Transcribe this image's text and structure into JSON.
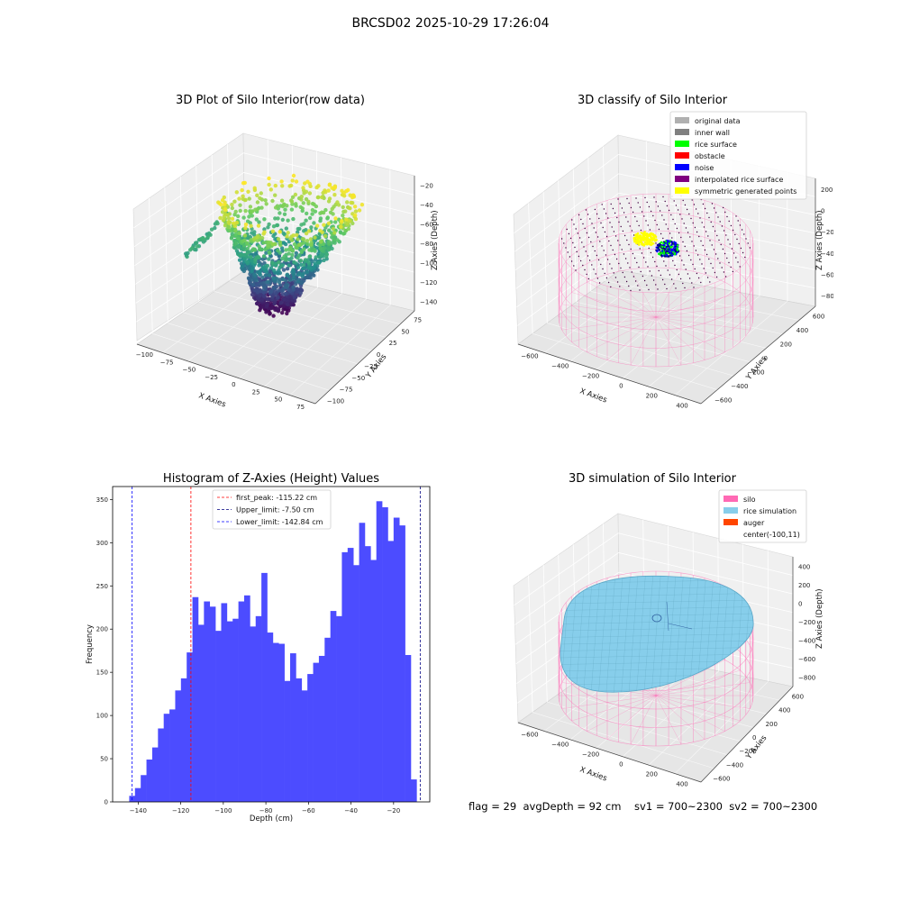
{
  "suptitle": "BRCSD02 2025-10-29 17:26:04",
  "status_line": "flag = 29  avgDepth = 92 cm    sv1 = 700~2300  sv2 = 700~2300",
  "chart_data": [
    {
      "type": "scatter",
      "title": "3D Plot of Silo Interior(row data)",
      "xlabel": "X Axies",
      "ylabel": "Y Axies",
      "zlabel": "Z Axies (Depth)",
      "xticks": [
        -100,
        -75,
        -50,
        -25,
        0,
        25,
        50,
        75
      ],
      "yticks": [
        -100,
        -75,
        -50,
        -25,
        0,
        25,
        50,
        75
      ],
      "zticks": [
        -20,
        -40,
        -60,
        -80,
        -100,
        -120,
        -140
      ],
      "colormap": "viridis",
      "zlim": [
        -150,
        -10
      ]
    },
    {
      "type": "scatter",
      "title": "3D classify of Silo Interior",
      "xlabel": "X Axies",
      "ylabel": "Y Axies",
      "zlabel": "Z Axies (Depth)",
      "xticks": [
        -600,
        -400,
        -200,
        0,
        200,
        400
      ],
      "yticks": [
        -600,
        -400,
        -200,
        0,
        200,
        400,
        600
      ],
      "zticks": [
        200,
        0,
        -200,
        -400,
        -600,
        -800
      ],
      "legend_position": "top-right",
      "legend": [
        {
          "label": "original data",
          "color": "#b0b0b0"
        },
        {
          "label": "inner wall",
          "color": "#808080"
        },
        {
          "label": "rice surface",
          "color": "#00ff00"
        },
        {
          "label": "obstacle",
          "color": "#ff0000"
        },
        {
          "label": "noise",
          "color": "#0000ff"
        },
        {
          "label": "interpolated rice surface",
          "color": "#800080"
        },
        {
          "label": "symmetric generated points",
          "color": "#ffff00"
        }
      ]
    },
    {
      "type": "bar",
      "title": "Histogram of Z-Axies (Height) Values",
      "xlabel": "Depth (cm)",
      "ylabel": "Frequency",
      "xlim": [
        -152,
        -3
      ],
      "ylim": [
        0,
        365
      ],
      "xticks": [
        -140,
        -120,
        -100,
        -80,
        -60,
        -40,
        -20
      ],
      "yticks": [
        0,
        50,
        100,
        150,
        200,
        250,
        300,
        350
      ],
      "bar_color": "#4c4cff",
      "bin_width": 2.7,
      "bin_start": -144.2,
      "values": [
        7,
        16,
        31,
        49,
        63,
        85,
        102,
        107,
        129,
        143,
        173,
        237,
        205,
        232,
        226,
        198,
        230,
        209,
        212,
        232,
        239,
        203,
        215,
        265,
        196,
        184,
        183,
        140,
        172,
        143,
        129,
        148,
        161,
        169,
        190,
        221,
        215,
        289,
        294,
        274,
        323,
        296,
        280,
        348,
        341,
        302,
        329,
        320,
        170,
        26
      ],
      "vlines": [
        {
          "label": "first_peak: -115.22 cm",
          "x": -115.22,
          "color": "#ff0000"
        },
        {
          "label": "Upper_limit: -7.50 cm",
          "x": -7.5,
          "color": "#000080"
        },
        {
          "label": "Lower_limit: -142.84 cm",
          "x": -142.84,
          "color": "#0000ff"
        }
      ],
      "legend_position": "top-center"
    },
    {
      "type": "scatter",
      "title": "3D simulation of Silo Interior",
      "xlabel": "X Axies",
      "ylabel": "Y Axies",
      "zlabel": "Z Axies (Depth)",
      "xticks": [
        -600,
        -400,
        -200,
        0,
        200,
        400
      ],
      "yticks": [
        -600,
        -400,
        -200,
        0,
        200,
        400,
        600
      ],
      "zticks": [
        400,
        200,
        0,
        -200,
        -400,
        -600,
        -800
      ],
      "legend_position": "top-right",
      "legend": [
        {
          "label": "silo",
          "color": "#ff69b4"
        },
        {
          "label": "rice simulation",
          "color": "#87ceeb"
        },
        {
          "label": "auger",
          "color": "#ff4500"
        },
        {
          "label": "center(-100,11)",
          "color": ""
        }
      ]
    }
  ]
}
